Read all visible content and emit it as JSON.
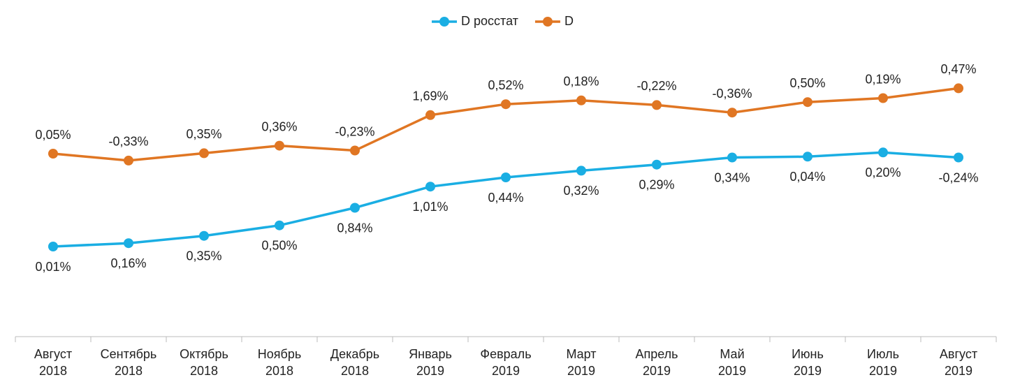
{
  "chart_data": {
    "type": "line",
    "categories": [
      "Август 2018",
      "Сентябрь 2018",
      "Октябрь 2018",
      "Ноябрь 2018",
      "Декабрь 2018",
      "Январь 2019",
      "Февраль 2019",
      "Март 2019",
      "Апрель 2019",
      "Май 2019",
      "Июнь 2019",
      "Июль 2019",
      "Август 2019"
    ],
    "series": [
      {
        "name": "D росстат",
        "color": "#1aaee3",
        "values": [
          0.01,
          0.16,
          0.35,
          0.5,
          0.84,
          1.01,
          0.44,
          0.32,
          0.29,
          0.34,
          0.04,
          0.2,
          -0.24
        ],
        "value_labels": [
          "0,01%",
          "0,16%",
          "0,35%",
          "0,50%",
          "0,84%",
          "1,01%",
          "0,44%",
          "0,32%",
          "0,29%",
          "0,34%",
          "0,04%",
          "0,20%",
          "-0,24%"
        ]
      },
      {
        "name": "D",
        "color": "#e07623",
        "values": [
          0.05,
          -0.33,
          0.35,
          0.36,
          -0.23,
          1.69,
          0.52,
          0.18,
          -0.22,
          -0.36,
          0.5,
          0.19,
          0.47
        ],
        "value_labels": [
          "0,05%",
          "-0,33%",
          "0,35%",
          "0,36%",
          "-0,23%",
          "1,69%",
          "0,52%",
          "0,18%",
          "-0,22%",
          "-0,36%",
          "0,50%",
          "0,19%",
          "0,47%"
        ]
      }
    ],
    "legend": "top"
  }
}
